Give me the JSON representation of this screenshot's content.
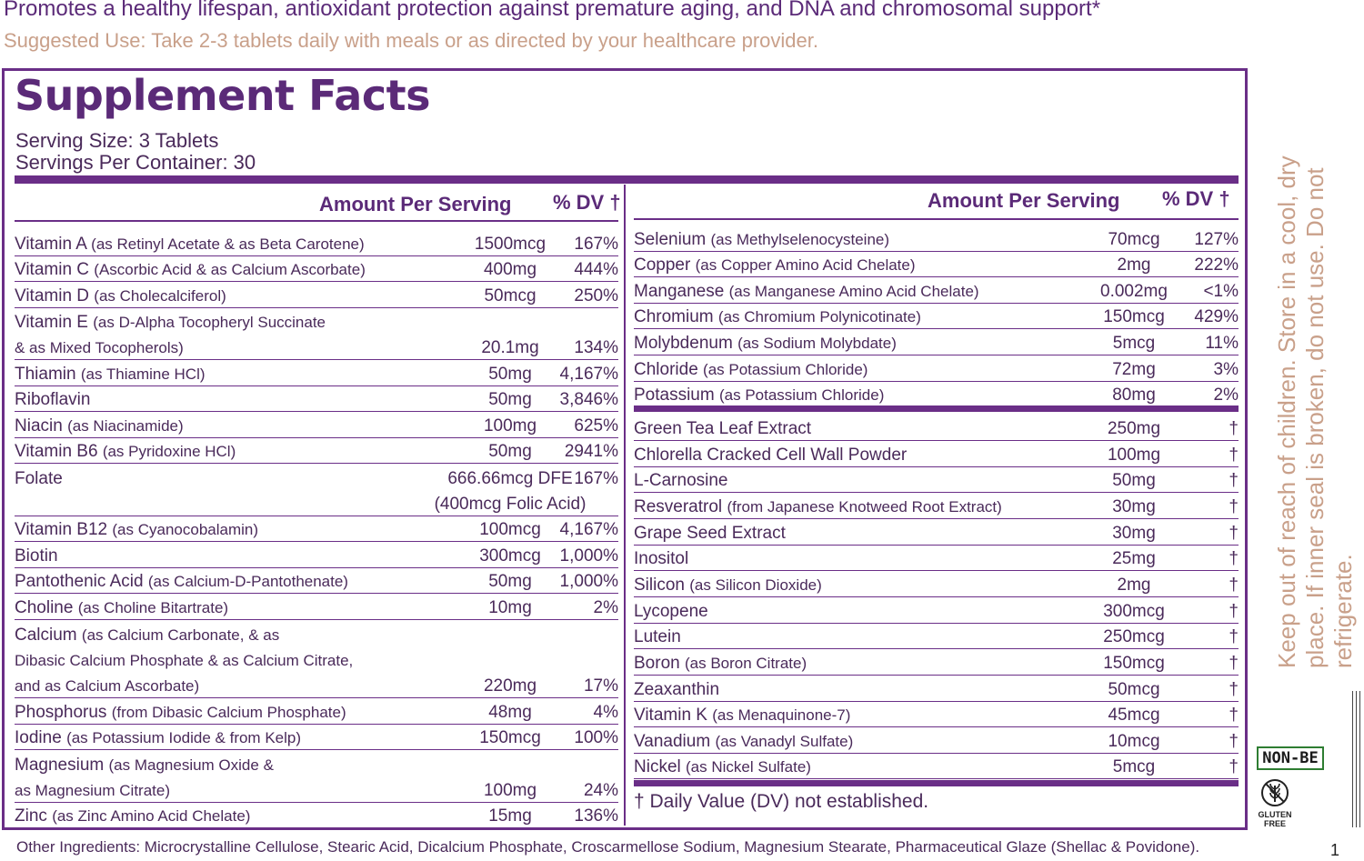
{
  "headline": "Promotes a healthy lifespan, antioxidant protection against premature aging, and DNA and chromosomal support*",
  "suggested_use": "Suggested Use: Take 2-3 tablets daily with meals or as directed by your healthcare provider.",
  "facts": {
    "title": "Supplement Facts",
    "serving_size": "Serving Size: 3 Tablets",
    "servings_per_container": "Servings Per Container: 30",
    "col_amount": "Amount Per Serving",
    "col_dv": "% DV †"
  },
  "left_rows": [
    {
      "name": "Vitamin A",
      "sub": "(as Retinyl Acetate & as Beta Carotene)",
      "amount": "1500mcg",
      "dv": "167%"
    },
    {
      "name": "Vitamin C",
      "sub": "(Ascorbic Acid & as Calcium Ascorbate)",
      "amount": "400mg",
      "dv": "444%"
    },
    {
      "name": "Vitamin D",
      "sub": "(as Cholecalciferol)",
      "amount": "50mcg",
      "dv": "250%"
    },
    {
      "name": "Vitamin E",
      "sub": "(as D-Alpha Tocopheryl Succinate",
      "amount": "",
      "dv": ""
    },
    {
      "name": "",
      "sub": "& as Mixed Tocopherols)",
      "amount": "20.1mg",
      "dv": "134%"
    },
    {
      "name": "Thiamin",
      "sub": "(as Thiamine HCl)",
      "amount": "50mg",
      "dv": "4,167%"
    },
    {
      "name": "Riboflavin",
      "sub": "",
      "amount": "50mg",
      "dv": "3,846%"
    },
    {
      "name": "Niacin",
      "sub": "(as Niacinamide)",
      "amount": "100mg",
      "dv": "625%"
    },
    {
      "name": "Vitamin B6",
      "sub": "(as Pyridoxine HCl)",
      "amount": "50mg",
      "dv": "2941%"
    },
    {
      "name": "Folate",
      "sub": "",
      "amount": "666.66mcg DFE",
      "dv": "167%"
    },
    {
      "name": "",
      "sub": "",
      "amount": "(400mcg Folic Acid)",
      "dv": ""
    },
    {
      "name": "Vitamin B12",
      "sub": "(as Cyanocobalamin)",
      "amount": "100mcg",
      "dv": "4,167%"
    },
    {
      "name": "Biotin",
      "sub": "",
      "amount": "300mcg",
      "dv": "1,000%"
    },
    {
      "name": "Pantothenic Acid",
      "sub": "(as Calcium-D-Pantothenate)",
      "amount": "50mg",
      "dv": "1,000%"
    },
    {
      "name": "Choline",
      "sub": "(as Choline Bitartrate)",
      "amount": "10mg",
      "dv": "2%"
    },
    {
      "name": "Calcium",
      "sub": "(as Calcium Carbonate, & as",
      "amount": "",
      "dv": ""
    },
    {
      "name": "",
      "sub": "Dibasic Calcium Phosphate & as Calcium Citrate,",
      "amount": "",
      "dv": ""
    },
    {
      "name": "",
      "sub": "and as Calcium Ascorbate)",
      "amount": "220mg",
      "dv": "17%"
    },
    {
      "name": "Phosphorus",
      "sub": "(from Dibasic Calcium Phosphate)",
      "amount": "48mg",
      "dv": "4%"
    },
    {
      "name": "Iodine",
      "sub": "(as Potassium Iodide & from Kelp)",
      "amount": "150mcg",
      "dv": "100%"
    },
    {
      "name": "Magnesium",
      "sub": "(as Magnesium Oxide &",
      "amount": "",
      "dv": ""
    },
    {
      "name": "",
      "sub": "as Magnesium Citrate)",
      "amount": "100mg",
      "dv": "24%"
    },
    {
      "name": "Zinc",
      "sub": "(as Zinc Amino Acid Chelate)",
      "amount": "15mg",
      "dv": "136%"
    }
  ],
  "right_rows": [
    {
      "name": "Selenium",
      "sub": "(as Methylselenocysteine)",
      "amount": "70mcg",
      "dv": "127%"
    },
    {
      "name": "Copper",
      "sub": "(as Copper Amino Acid Chelate)",
      "amount": "2mg",
      "dv": "222%"
    },
    {
      "name": "Manganese",
      "sub": "(as Manganese Amino Acid Chelate)",
      "amount": "0.002mg",
      "dv": "<1%"
    },
    {
      "name": "Chromium",
      "sub": "(as Chromium Polynicotinate)",
      "amount": "150mcg",
      "dv": "429%"
    },
    {
      "name": "Molybdenum",
      "sub": "(as Sodium Molybdate)",
      "amount": "5mcg",
      "dv": "11%"
    },
    {
      "name": "Chloride",
      "sub": "(as Potassium Chloride)",
      "amount": "72mg",
      "dv": "3%"
    },
    {
      "name": "Potassium",
      "sub": "(as Potassium Chloride)",
      "amount": "80mg",
      "dv": "2%"
    },
    {
      "name": "Green Tea Leaf Extract",
      "sub": "",
      "amount": "250mg",
      "dv": "†"
    },
    {
      "name": "Chlorella Cracked Cell Wall Powder",
      "sub": "",
      "amount": "100mg",
      "dv": "†"
    },
    {
      "name": "L-Carnosine",
      "sub": "",
      "amount": "50mg",
      "dv": "†"
    },
    {
      "name": "Resveratrol",
      "sub": "(from Japanese Knotweed Root Extract)",
      "amount": "30mg",
      "dv": "†"
    },
    {
      "name": "Grape Seed Extract",
      "sub": "",
      "amount": "30mg",
      "dv": "†"
    },
    {
      "name": "Inositol",
      "sub": "",
      "amount": "25mg",
      "dv": "†"
    },
    {
      "name": "Silicon",
      "sub": "(as Silicon Dioxide)",
      "amount": "2mg",
      "dv": "†"
    },
    {
      "name": "Lycopene",
      "sub": "",
      "amount": "300mcg",
      "dv": "†"
    },
    {
      "name": "Lutein",
      "sub": "",
      "amount": "250mcg",
      "dv": "†"
    },
    {
      "name": "Boron",
      "sub": "(as Boron Citrate)",
      "amount": "150mcg",
      "dv": "†"
    },
    {
      "name": "Zeaxanthin",
      "sub": "",
      "amount": "50mcg",
      "dv": "†"
    },
    {
      "name": "Vitamin K",
      "sub": "(as Menaquinone-7)",
      "amount": "45mcg",
      "dv": "†"
    },
    {
      "name": "Vanadium",
      "sub": "(as Vanadyl Sulfate)",
      "amount": "10mcg",
      "dv": "†"
    },
    {
      "name": "Nickel",
      "sub": "(as Nickel Sulfate)",
      "amount": "5mcg",
      "dv": "†"
    }
  ],
  "dagger_note": "† Daily Value (DV) not established.",
  "other_ingredients": "Other Ingredients: Microcrystalline Cellulose, Stearic Acid, Dicalcium Phosphate, Croscarmellose Sodium, Magnesium Stearate, Pharmaceutical Glaze (Shellac & Povidone).",
  "storage": "Keep out of reach of children. Store in a cool, dry place. If inner seal is broken, do not use. Do not refrigerate.",
  "badges": {
    "non_be": "NON-BE",
    "gluten_free": "GLUTEN FREE",
    "gluten_free_icon": "wheat-crossed-icon"
  },
  "page_number": "1",
  "colors": {
    "accent": "#6a2e87",
    "muted": "#c9a08a"
  }
}
